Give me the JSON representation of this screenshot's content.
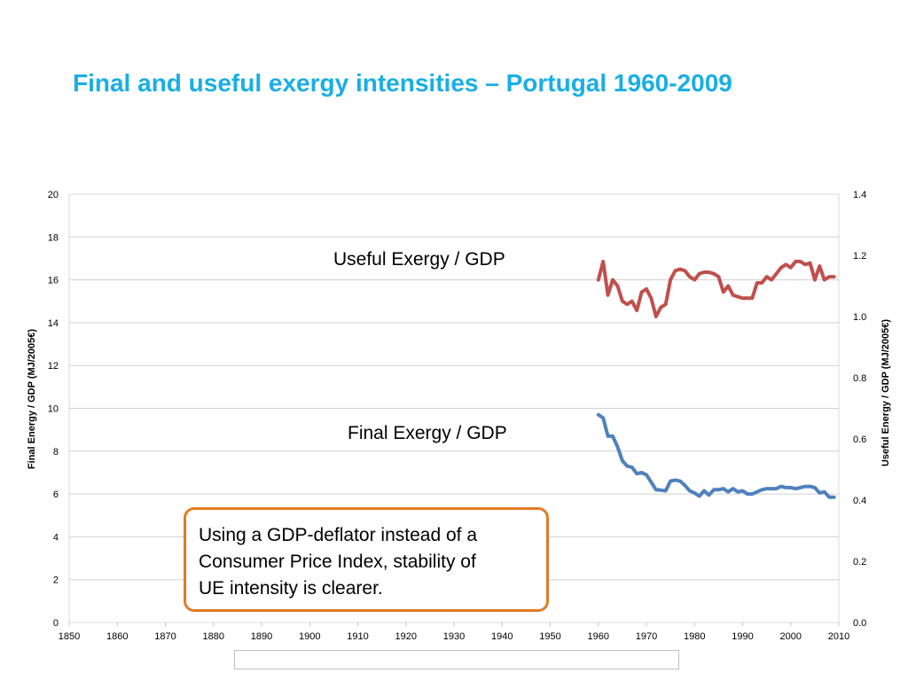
{
  "page": {
    "title": "Final and useful exergy intensities – Portugal 1960-2009",
    "title_color": "#19AEE6"
  },
  "series_labels": {
    "useful": "Useful Exergy / GDP",
    "final": "Final Exergy / GDP"
  },
  "callout": {
    "lines": [
      "Using a GDP-deflator instead of a",
      "Consumer Price Index, stability of",
      "UE intensity is clearer."
    ],
    "border_color": "#E07B24"
  },
  "chart_data": {
    "type": "line",
    "title": "",
    "xlabel": "",
    "ylabel": "Final Energy / GDP (MJ/2005€)",
    "y2label": "Useful Energy / GDP (MJ/2005€)",
    "xlim": [
      1850,
      2010
    ],
    "ylim": [
      0,
      20
    ],
    "y2lim": [
      0,
      1.4
    ],
    "x_ticks": [
      "1850",
      "1860",
      "1870",
      "1880",
      "1890",
      "1900",
      "1910",
      "1920",
      "1930",
      "1940",
      "1950",
      "1960",
      "1970",
      "1980",
      "1990",
      "2000",
      "2010"
    ],
    "y_ticks": [
      "0",
      "2",
      "4",
      "6",
      "8",
      "10",
      "12",
      "14",
      "16",
      "18",
      "20"
    ],
    "y2_ticks": [
      "0.0",
      "0.2",
      "0.4",
      "0.6",
      "0.8",
      "1.0",
      "1.2",
      "1.4"
    ],
    "grid": true,
    "series": [
      {
        "name": "Useful Exergy / GDP",
        "axis": "right",
        "color": "#C0504D",
        "x": [
          1960,
          1961,
          1962,
          1963,
          1964,
          1965,
          1966,
          1967,
          1968,
          1969,
          1970,
          1971,
          1972,
          1973,
          1974,
          1975,
          1976,
          1977,
          1978,
          1979,
          1980,
          1981,
          1982,
          1983,
          1984,
          1985,
          1986,
          1987,
          1988,
          1989,
          1990,
          1991,
          1992,
          1993,
          1994,
          1995,
          1996,
          1997,
          1998,
          1999,
          2000,
          2001,
          2002,
          2003,
          2004,
          2005,
          2006,
          2007,
          2008,
          2009
        ],
        "values": [
          1.12,
          1.18,
          1.07,
          1.12,
          1.1,
          1.05,
          1.04,
          1.05,
          1.02,
          1.08,
          1.09,
          1.06,
          1.0,
          1.03,
          1.04,
          1.12,
          1.15,
          1.155,
          1.15,
          1.13,
          1.12,
          1.14,
          1.145,
          1.145,
          1.14,
          1.13,
          1.08,
          1.1,
          1.07,
          1.065,
          1.06,
          1.06,
          1.06,
          1.11,
          1.11,
          1.13,
          1.12,
          1.14,
          1.16,
          1.17,
          1.16,
          1.18,
          1.18,
          1.17,
          1.175,
          1.12,
          1.165,
          1.12,
          1.13,
          1.13
        ]
      },
      {
        "name": "Final Exergy / GDP",
        "axis": "left",
        "color": "#4F81BD",
        "x": [
          1960,
          1961,
          1962,
          1963,
          1964,
          1965,
          1966,
          1967,
          1968,
          1969,
          1970,
          1971,
          1972,
          1973,
          1974,
          1975,
          1976,
          1977,
          1978,
          1979,
          1980,
          1981,
          1982,
          1983,
          1984,
          1985,
          1986,
          1987,
          1988,
          1989,
          1990,
          1991,
          1992,
          1993,
          1994,
          1995,
          1996,
          1997,
          1998,
          1999,
          2000,
          2001,
          2002,
          2003,
          2004,
          2005,
          2006,
          2007,
          2008,
          2009
        ],
        "values": [
          9.7,
          9.55,
          8.7,
          8.7,
          8.2,
          7.55,
          7.3,
          7.25,
          6.95,
          7.0,
          6.9,
          6.55,
          6.2,
          6.18,
          6.15,
          6.6,
          6.65,
          6.6,
          6.4,
          6.15,
          6.05,
          5.9,
          6.15,
          5.95,
          6.2,
          6.2,
          6.25,
          6.1,
          6.25,
          6.1,
          6.15,
          6.0,
          6.0,
          6.1,
          6.2,
          6.25,
          6.25,
          6.25,
          6.35,
          6.3,
          6.3,
          6.25,
          6.3,
          6.35,
          6.35,
          6.3,
          6.05,
          6.1,
          5.85,
          5.85
        ]
      }
    ]
  }
}
